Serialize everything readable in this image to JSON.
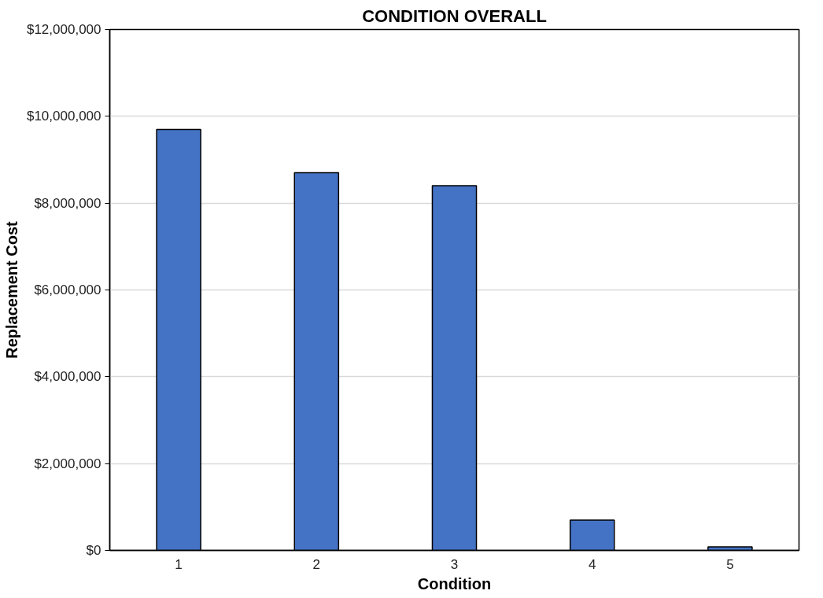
{
  "chart_data": {
    "type": "bar",
    "title": "CONDITION OVERALL",
    "xlabel": "Condition",
    "ylabel": "Replacement Cost",
    "categories": [
      "1",
      "2",
      "3",
      "4",
      "5"
    ],
    "series": [
      {
        "color": "#4472c4",
        "values": [
          9700000,
          8700000,
          8400000,
          700000,
          80000
        ]
      }
    ],
    "ylim": [
      0,
      12000000
    ],
    "yticks": [
      {
        "value": 0,
        "label": "$0"
      },
      {
        "value": 2000000,
        "label": "$2,000,000"
      },
      {
        "value": 4000000,
        "label": "$4,000,000"
      },
      {
        "value": 6000000,
        "label": "$6,000,000"
      },
      {
        "value": 8000000,
        "label": "$8,000,000"
      },
      {
        "value": 10000000,
        "label": "$10,000,000"
      },
      {
        "value": 12000000,
        "label": "$12,000,000"
      }
    ],
    "grid": "y"
  }
}
